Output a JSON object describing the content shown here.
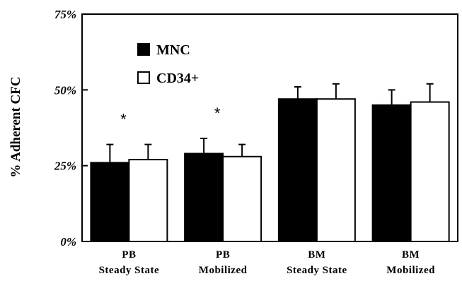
{
  "chart_data": {
    "type": "bar",
    "ylabel": "% Adherent CFC",
    "ylim": [
      0,
      75
    ],
    "yticks": [
      {
        "value": 0,
        "label": "0%"
      },
      {
        "value": 25,
        "label": "25%"
      },
      {
        "value": 50,
        "label": "50%"
      },
      {
        "value": 75,
        "label": "75%"
      }
    ],
    "categories": [
      {
        "line1": "PB",
        "line2": "Steady State"
      },
      {
        "line1": "PB",
        "line2": "Mobilized"
      },
      {
        "line1": "BM",
        "line2": "Steady State"
      },
      {
        "line1": "BM",
        "line2": "Mobilized"
      }
    ],
    "series": [
      {
        "name": "MNC",
        "color": "#000000",
        "values": [
          26,
          29,
          47,
          45
        ],
        "errors": [
          6,
          5,
          4,
          5
        ]
      },
      {
        "name": "CD34+",
        "color": "#ffffff",
        "values": [
          27,
          28,
          47,
          46
        ],
        "errors": [
          5,
          4,
          5,
          6
        ]
      }
    ],
    "annotations": [
      {
        "category": 0,
        "text": "*"
      },
      {
        "category": 1,
        "text": "*"
      }
    ],
    "legend": "top-left",
    "grid": false
  }
}
